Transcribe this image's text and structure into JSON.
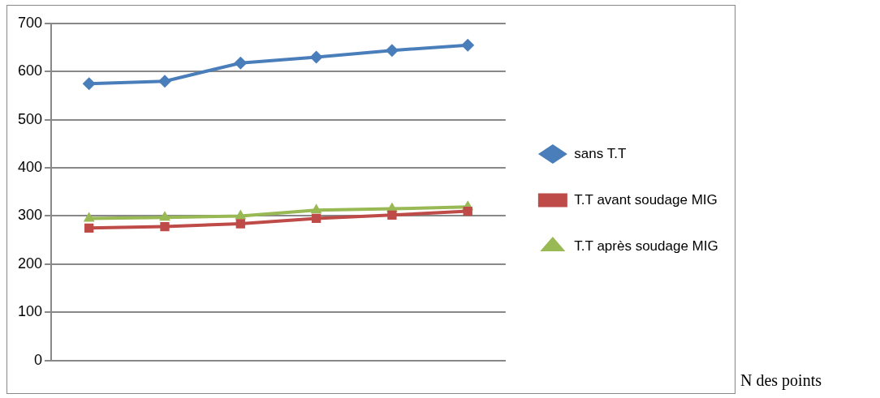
{
  "chart_data": {
    "type": "line",
    "annotations": [
      "N des points"
    ],
    "categories": [
      null,
      null,
      null,
      null,
      null,
      null
    ],
    "series": [
      {
        "name": "sans T.T",
        "color": "#4a7ebb",
        "values": [
          575,
          580,
          618,
          630,
          644,
          655
        ],
        "marker": "diamond"
      },
      {
        "name": "T.T avant soudage MIG",
        "color": "#be4b48",
        "values": [
          275,
          278,
          284,
          295,
          302,
          310
        ],
        "marker": "square"
      },
      {
        "name": "T.T après soudage MIG",
        "color": "#98b954",
        "values": [
          295,
          297,
          300,
          312,
          315,
          319
        ],
        "marker": "triangle"
      }
    ],
    "ylim": [
      0,
      700
    ],
    "yticks": [
      0,
      100,
      200,
      300,
      400,
      500,
      600,
      700
    ],
    "grid": "y",
    "legend": "right"
  }
}
